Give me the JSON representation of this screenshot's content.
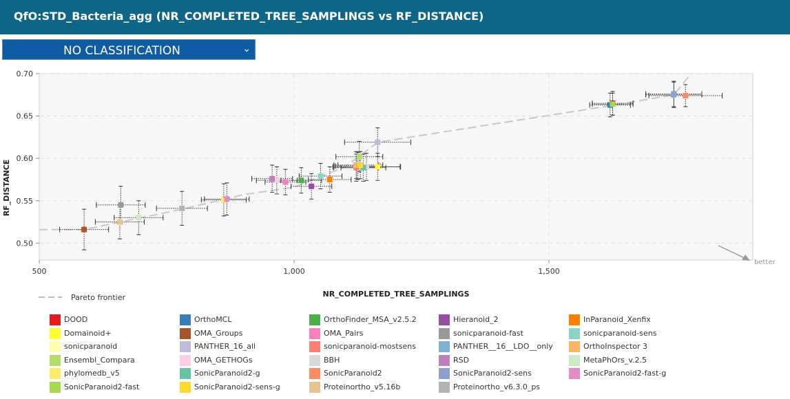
{
  "header": {
    "title": "QfO:STD_Bacteria_agg (NR_COMPLETED_TREE_SAMPLINGS vs RF_DISTANCE)"
  },
  "classification": {
    "selected": "NO CLASSIFICATION"
  },
  "pareto_label": "Pareto frontier",
  "better_label": "better",
  "chart_data": {
    "type": "scatter",
    "title": "",
    "xlabel": "NR_COMPLETED_TREE_SAMPLINGS",
    "ylabel": "RF_DISTANCE",
    "xlim": [
      500,
      1900
    ],
    "ylim": [
      0.48,
      0.7
    ],
    "xticks": [
      500,
      1000,
      1500
    ],
    "xtick_labels": [
      "500",
      "1,000",
      "1,500"
    ],
    "yticks": [
      0.5,
      0.55,
      0.6,
      0.65,
      0.7
    ],
    "ytick_labels": [
      "0.50",
      "0.55",
      "0.60",
      "0.65",
      "0.70"
    ],
    "grid": true,
    "pareto_frontier": [
      {
        "x": 500,
        "y": 0.516
      },
      {
        "x": 588,
        "y": 0.516
      },
      {
        "x": 660,
        "y": 0.525
      },
      {
        "x": 780,
        "y": 0.54
      },
      {
        "x": 900,
        "y": 0.557
      },
      {
        "x": 1000,
        "y": 0.566
      },
      {
        "x": 1100,
        "y": 0.59
      },
      {
        "x": 1164,
        "y": 0.619
      },
      {
        "x": 1620,
        "y": 0.662
      },
      {
        "x": 1745,
        "y": 0.675
      },
      {
        "x": 1775,
        "y": 0.697
      }
    ],
    "series": [
      {
        "name": "DOOD",
        "color": "#e41a1c",
        "x": 1625,
        "y": 0.665,
        "xerr": 40,
        "yerr": 0.014
      },
      {
        "name": "OrthoMCL",
        "color": "#377eb8",
        "x": 1620,
        "y": 0.663,
        "xerr": 40,
        "yerr": 0.014
      },
      {
        "name": "OrthoFinder_MSA_v2.5.2",
        "color": "#4daf4a",
        "x": 1014,
        "y": 0.574,
        "xerr": 40,
        "yerr": 0.015
      },
      {
        "name": "Hieranoid_2",
        "color": "#984ea3",
        "x": 1034,
        "y": 0.567,
        "xerr": 40,
        "yerr": 0.015
      },
      {
        "name": "InParanoid_Xenfix",
        "color": "#ff7f00",
        "x": 1070,
        "y": 0.575,
        "xerr": 42,
        "yerr": 0.015
      },
      {
        "name": "Domainoid+",
        "color": "#ffff33",
        "x": 1164,
        "y": 0.59,
        "xerr": 45,
        "yerr": 0.016
      },
      {
        "name": "OMA_Groups",
        "color": "#a65628",
        "x": 588,
        "y": 0.516,
        "xerr": 48,
        "yerr": 0.024
      },
      {
        "name": "OMA_Pairs",
        "color": "#f781bf",
        "x": 983,
        "y": 0.572,
        "xerr": 40,
        "yerr": 0.015
      },
      {
        "name": "sonicparanoid-fast",
        "color": "#999999",
        "x": 660,
        "y": 0.545,
        "xerr": 48,
        "yerr": 0.022
      },
      {
        "name": "sonicparanoid-sens",
        "color": "#8dd3c7",
        "x": 1052,
        "y": 0.579,
        "xerr": 42,
        "yerr": 0.015
      },
      {
        "name": "sonicparanoid",
        "color": "#ffffb3",
        "x": 1125,
        "y": 0.591,
        "xerr": 44,
        "yerr": 0.016
      },
      {
        "name": "PANTHER_16_all",
        "color": "#bebada",
        "x": 1164,
        "y": 0.619,
        "xerr": 65,
        "yerr": 0.017
      },
      {
        "name": "sonicparanoid-mostsens",
        "color": "#fb8072",
        "x": 1122,
        "y": 0.589,
        "xerr": 44,
        "yerr": 0.016
      },
      {
        "name": "PANTHER__16__LDO__only",
        "color": "#80b1d3",
        "x": 1745,
        "y": 0.675,
        "xerr": 55,
        "yerr": 0.015
      },
      {
        "name": "OrthoInspector 3",
        "color": "#fdb462",
        "x": 1122,
        "y": 0.592,
        "xerr": 44,
        "yerr": 0.016
      },
      {
        "name": "Ensembl_Compara",
        "color": "#b3de69",
        "x": 1128,
        "y": 0.602,
        "xerr": 46,
        "yerr": 0.018
      },
      {
        "name": "OMA_GETHOGs",
        "color": "#fccde5",
        "x": 966,
        "y": 0.574,
        "xerr": 40,
        "yerr": 0.016
      },
      {
        "name": "BBH",
        "color": "#d9d9d9",
        "x": 1142,
        "y": 0.59,
        "xerr": 66,
        "yerr": 0.016
      },
      {
        "name": "RSD",
        "color": "#bc80bd",
        "x": 957,
        "y": 0.576,
        "xerr": 40,
        "yerr": 0.016
      },
      {
        "name": "MetaPhOrs_v.2.5",
        "color": "#ccebc5",
        "x": 695,
        "y": 0.53,
        "xerr": 48,
        "yerr": 0.02
      },
      {
        "name": "phylomedb_v5",
        "color": "#ffed6f",
        "x": 862,
        "y": 0.551,
        "xerr": 44,
        "yerr": 0.019
      },
      {
        "name": "SonicParanoid2-g",
        "color": "#66c2a5",
        "x": 1136,
        "y": 0.589,
        "xerr": 44,
        "yerr": 0.016
      },
      {
        "name": "SonicParanoid2",
        "color": "#fc8d62",
        "x": 1768,
        "y": 0.674,
        "xerr": 72,
        "yerr": 0.013
      },
      {
        "name": "SonicParanoid2-sens",
        "color": "#8da0cb",
        "x": 1745,
        "y": 0.676,
        "xerr": 55,
        "yerr": 0.015
      },
      {
        "name": "SonicParanoid2-fast-g",
        "color": "#e78ac3",
        "x": 868,
        "y": 0.552,
        "xerr": 44,
        "yerr": 0.019
      },
      {
        "name": "SonicParanoid2-fast",
        "color": "#a6d854",
        "x": 1625,
        "y": 0.664,
        "xerr": 40,
        "yerr": 0.013
      },
      {
        "name": "SonicParanoid2-sens-g",
        "color": "#ffd92f",
        "x": 1130,
        "y": 0.592,
        "xerr": 44,
        "yerr": 0.016
      },
      {
        "name": "Proteinortho_v5.16b",
        "color": "#e5c494",
        "x": 658,
        "y": 0.525,
        "xerr": 48,
        "yerr": 0.02
      },
      {
        "name": "Proteinortho_v6.3.0_ps",
        "color": "#b3b3b3",
        "x": 780,
        "y": 0.541,
        "xerr": 50,
        "yerr": 0.02
      }
    ]
  }
}
